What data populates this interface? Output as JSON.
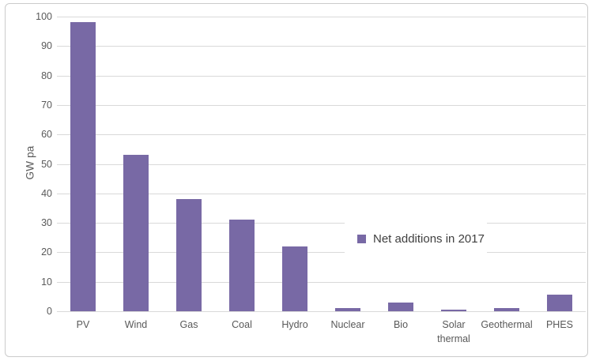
{
  "chart_data": {
    "type": "bar",
    "title": "",
    "xlabel": "",
    "ylabel": "GW pa",
    "categories": [
      "PV",
      "Wind",
      "Gas",
      "Coal",
      "Hydro",
      "Nuclear",
      "Bio",
      "Solar thermal",
      "Geothermal",
      "PHES"
    ],
    "values": [
      98,
      53,
      38,
      31,
      22,
      1,
      3,
      0.5,
      1,
      5.5
    ],
    "series_name": "Net additions in 2017",
    "ylim": [
      0,
      100
    ],
    "ytick_step": 10,
    "ytick_labels": [
      "0",
      "10",
      "20",
      "30",
      "40",
      "50",
      "60",
      "70",
      "80",
      "90",
      "100"
    ],
    "grid": true,
    "legend_position": "inside-right",
    "colors": {
      "bar": "#7869A5",
      "gridline": "#D9D9D9",
      "axis_text": "#595959",
      "legend_text": "#3F3F3F",
      "frame_border": "#CBCBCB"
    }
  }
}
